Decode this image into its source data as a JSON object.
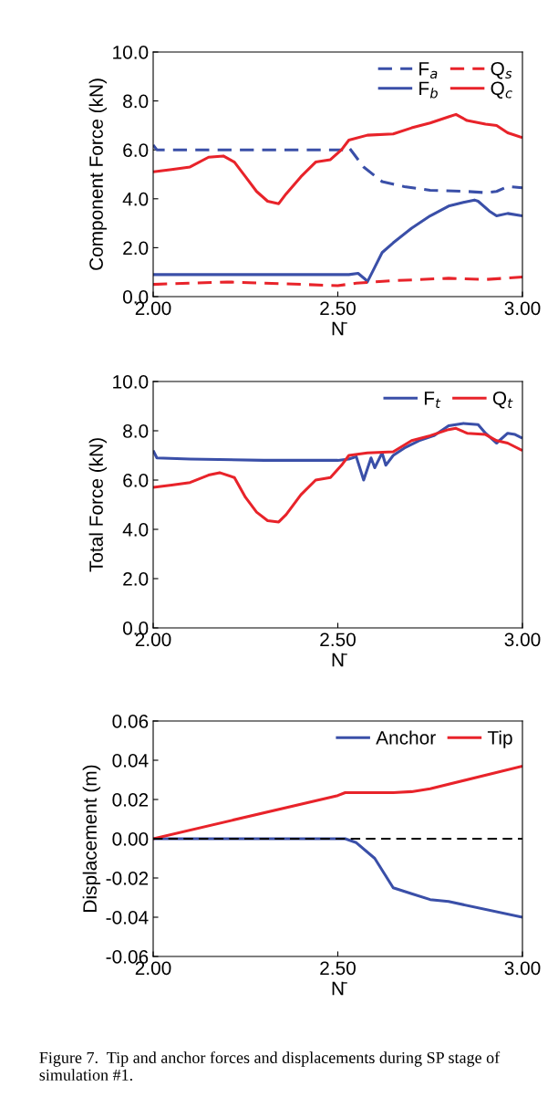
{
  "chart_data": [
    {
      "type": "line",
      "ylabel": "Component Force (kN)",
      "xlabel": "N̄",
      "legend": "top right",
      "grid": false,
      "xlim": [
        2.0,
        3.0
      ],
      "xticks": [
        {
          "value": 2.0,
          "label": "2.00"
        },
        {
          "value": 2.5,
          "label": "2.50"
        },
        {
          "value": 3.0,
          "label": "3.00"
        }
      ],
      "ylim": [
        0,
        10
      ],
      "yticks": [
        {
          "value": 0,
          "label": "0.0"
        },
        {
          "value": 2,
          "label": "2.0"
        },
        {
          "value": 4,
          "label": "4.0"
        },
        {
          "value": 6,
          "label": "6.0"
        },
        {
          "value": 8,
          "label": "8.0"
        },
        {
          "value": 10,
          "label": "10.0"
        }
      ],
      "series": [
        {
          "name": "F$_{a}$",
          "color": "#3a4fa8",
          "line_style": "dashed",
          "x": [
            2.0,
            2.01,
            2.2,
            2.52,
            2.53,
            2.57,
            2.62,
            2.65,
            2.68,
            2.75,
            2.85,
            2.9,
            2.93,
            2.96,
            3.0
          ],
          "values": [
            6.2,
            6.0,
            6.0,
            6.0,
            6.1,
            5.3,
            4.7,
            4.6,
            4.5,
            4.35,
            4.3,
            4.25,
            4.3,
            4.5,
            4.45
          ]
        },
        {
          "name": "F$_{b}$",
          "color": "#3a4fa8",
          "line_style": "solid",
          "x": [
            2.0,
            2.53,
            2.555,
            2.575,
            2.58,
            2.6,
            2.62,
            2.65,
            2.7,
            2.75,
            2.8,
            2.84,
            2.87,
            2.88,
            2.91,
            2.93,
            2.96,
            3.0
          ],
          "values": [
            0.9,
            0.9,
            0.95,
            0.7,
            0.6,
            1.2,
            1.8,
            2.2,
            2.8,
            3.3,
            3.7,
            3.85,
            3.95,
            3.9,
            3.5,
            3.3,
            3.4,
            3.3
          ]
        },
        {
          "name": "Q$_{s}$",
          "color": "#e8232a",
          "line_style": "dashed",
          "x": [
            2.0,
            2.2,
            2.4,
            2.5,
            2.55,
            2.65,
            2.8,
            2.9,
            3.0
          ],
          "values": [
            0.5,
            0.6,
            0.5,
            0.45,
            0.55,
            0.65,
            0.75,
            0.7,
            0.8
          ]
        },
        {
          "name": "Q$_{c}$",
          "color": "#e8232a",
          "line_style": "solid",
          "x": [
            2.0,
            2.05,
            2.1,
            2.15,
            2.19,
            2.22,
            2.25,
            2.28,
            2.31,
            2.34,
            2.36,
            2.4,
            2.44,
            2.48,
            2.51,
            2.53,
            2.58,
            2.65,
            2.7,
            2.75,
            2.8,
            2.82,
            2.85,
            2.9,
            2.93,
            2.96,
            3.0
          ],
          "values": [
            5.1,
            5.2,
            5.3,
            5.7,
            5.75,
            5.5,
            4.9,
            4.3,
            3.9,
            3.8,
            4.2,
            4.9,
            5.5,
            5.6,
            6.0,
            6.4,
            6.6,
            6.65,
            6.9,
            7.1,
            7.35,
            7.45,
            7.2,
            7.05,
            7.0,
            6.7,
            6.5
          ]
        }
      ]
    },
    {
      "type": "line",
      "ylabel": "Total Force (kN)",
      "xlabel": "N̄",
      "legend": "top right",
      "grid": false,
      "xlim": [
        2.0,
        3.0
      ],
      "xticks": [
        {
          "value": 2.0,
          "label": "2.00"
        },
        {
          "value": 2.5,
          "label": "2.50"
        },
        {
          "value": 3.0,
          "label": "3.00"
        }
      ],
      "ylim": [
        0,
        10
      ],
      "yticks": [
        {
          "value": 0,
          "label": "0.0"
        },
        {
          "value": 2,
          "label": "2.0"
        },
        {
          "value": 4,
          "label": "4.0"
        },
        {
          "value": 6,
          "label": "6.0"
        },
        {
          "value": 8,
          "label": "8.0"
        },
        {
          "value": 10,
          "label": "10.0"
        }
      ],
      "series": [
        {
          "name": "F$_{t}$",
          "color": "#3a4fa8",
          "line_style": "solid",
          "x": [
            2.0,
            2.01,
            2.1,
            2.3,
            2.5,
            2.53,
            2.55,
            2.57,
            2.59,
            2.6,
            2.62,
            2.63,
            2.65,
            2.68,
            2.72,
            2.76,
            2.8,
            2.84,
            2.88,
            2.9,
            2.93,
            2.96,
            2.98,
            3.0
          ],
          "values": [
            7.2,
            6.9,
            6.85,
            6.8,
            6.8,
            6.85,
            6.95,
            6.0,
            6.9,
            6.5,
            7.1,
            6.6,
            7.0,
            7.3,
            7.6,
            7.8,
            8.2,
            8.3,
            8.25,
            7.9,
            7.5,
            7.9,
            7.85,
            7.7
          ]
        },
        {
          "name": "Q$_{t}$",
          "color": "#e8232a",
          "line_style": "solid",
          "x": [
            2.0,
            2.05,
            2.1,
            2.15,
            2.18,
            2.22,
            2.25,
            2.28,
            2.31,
            2.34,
            2.36,
            2.4,
            2.44,
            2.48,
            2.51,
            2.53,
            2.58,
            2.65,
            2.7,
            2.75,
            2.8,
            2.82,
            2.85,
            2.9,
            2.93,
            2.96,
            3.0
          ],
          "values": [
            5.7,
            5.8,
            5.9,
            6.2,
            6.3,
            6.1,
            5.3,
            4.7,
            4.35,
            4.3,
            4.6,
            5.4,
            6.0,
            6.1,
            6.6,
            7.0,
            7.1,
            7.15,
            7.6,
            7.8,
            8.05,
            8.1,
            7.9,
            7.85,
            7.6,
            7.5,
            7.2
          ]
        }
      ]
    },
    {
      "type": "line",
      "ylabel": "Displacement (m)",
      "xlabel": "N̄",
      "legend": "top right",
      "grid": false,
      "xlim": [
        2.0,
        3.0
      ],
      "xticks": [
        {
          "value": 2.0,
          "label": "2.00"
        },
        {
          "value": 2.5,
          "label": "2.50"
        },
        {
          "value": 3.0,
          "label": "3.00"
        }
      ],
      "ylim": [
        -0.06,
        0.06
      ],
      "yticks": [
        {
          "value": -0.06,
          "label": "-0.06"
        },
        {
          "value": -0.04,
          "label": "-0.04"
        },
        {
          "value": -0.02,
          "label": "-0.02"
        },
        {
          "value": 0,
          "label": "0.00"
        },
        {
          "value": 0.02,
          "label": "0.02"
        },
        {
          "value": 0.04,
          "label": "0.04"
        },
        {
          "value": 0.06,
          "label": "0.06"
        }
      ],
      "ref_lines": [
        {
          "axis": "y",
          "value": 0,
          "color": "#000000",
          "line_style": "dashed"
        }
      ],
      "series": [
        {
          "name": "Anchor",
          "color": "#3a4fa8",
          "line_style": "solid",
          "x": [
            2.0,
            2.52,
            2.55,
            2.6,
            2.65,
            2.7,
            2.75,
            2.8,
            3.0
          ],
          "values": [
            0,
            0,
            -0.002,
            -0.01,
            -0.025,
            -0.028,
            -0.031,
            -0.032,
            -0.04
          ]
        },
        {
          "name": "Tip",
          "color": "#e8232a",
          "line_style": "solid",
          "x": [
            2.0,
            2.5,
            2.52,
            2.65,
            2.7,
            2.75,
            3.0
          ],
          "values": [
            0,
            0.022,
            0.0235,
            0.0235,
            0.024,
            0.0255,
            0.037
          ]
        }
      ],
      "annotations": [
        "Figure 7.  Tip and anchor forces and displacements during SP stage of simulation #1."
      ]
    }
  ]
}
